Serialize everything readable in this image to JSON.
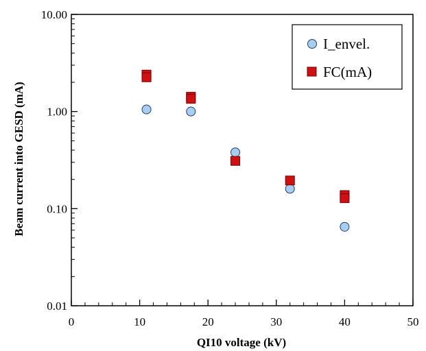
{
  "chart_data": {
    "type": "scatter",
    "xlabel": "QI10 voltage (kV)",
    "ylabel": "Beam current into GESD (mA)",
    "xlim": [
      0,
      50
    ],
    "ylim": [
      0.01,
      10
    ],
    "yscale": "log",
    "x_ticks": [
      0,
      10,
      20,
      30,
      40,
      50
    ],
    "x_tick_labels": [
      "0",
      "10",
      "20",
      "30",
      "40",
      "50"
    ],
    "y_ticks": [
      0.01,
      0.1,
      1,
      10
    ],
    "y_tick_labels": [
      "0.01",
      "0.10",
      "1.00",
      "10.00"
    ],
    "grid": false,
    "legend_position": "top-right",
    "series": [
      {
        "name": "I_envel.",
        "marker": "circle",
        "color": "#a9cdf0",
        "edge_color": "#1f3f6e",
        "x": [
          11,
          17.5,
          24,
          32,
          40
        ],
        "y": [
          1.05,
          1.0,
          0.38,
          0.16,
          0.065
        ]
      },
      {
        "name": "FC(mA)",
        "marker": "square",
        "color": "#d01010",
        "edge_color": "#7a0000",
        "x": [
          11,
          11,
          17.5,
          17.5,
          24,
          32,
          40,
          40
        ],
        "y": [
          2.4,
          2.25,
          1.42,
          1.35,
          0.31,
          0.195,
          0.138,
          0.128
        ]
      }
    ]
  }
}
